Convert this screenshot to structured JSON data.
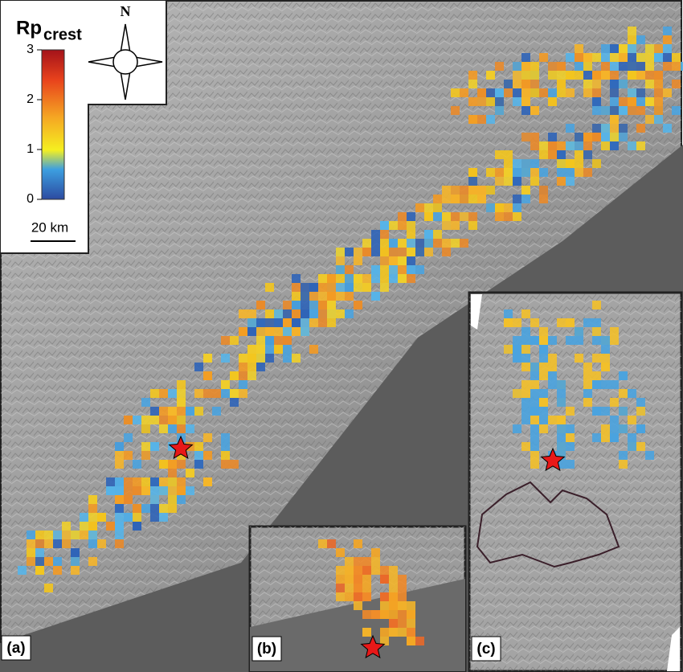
{
  "legend": {
    "title": "Rp",
    "subscript": "crest",
    "range": [
      0,
      3
    ],
    "ticks": [
      0,
      1,
      2,
      3
    ],
    "scale_bar": "20 km"
  },
  "north_arrow": "N",
  "panels": [
    "(a)",
    "(b)",
    "(c)"
  ]
}
